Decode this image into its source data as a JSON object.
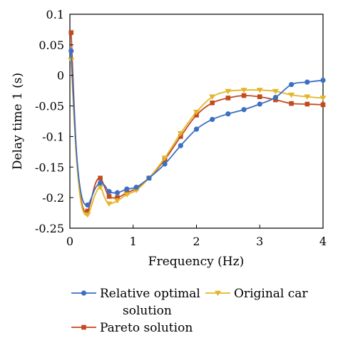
{
  "chart_data": {
    "type": "line",
    "title": "",
    "xlabel": "Frequency (Hz)",
    "ylabel": "Delay time 1 (s)",
    "xlim": [
      0,
      4
    ],
    "ylim": [
      -0.25,
      0.1
    ],
    "xticks": [
      0,
      1,
      2,
      3,
      4
    ],
    "xtick_labels": [
      "0",
      "1",
      "2",
      "3",
      "4"
    ],
    "yticks": [
      0.1,
      0.05,
      0,
      -0.05,
      -0.1,
      -0.15,
      -0.2,
      -0.25
    ],
    "ytick_labels": [
      "0.1",
      "0.05",
      "0",
      "-0.05",
      "-0.1",
      "-0.15",
      "-0.2",
      "-0.25"
    ],
    "grid": false,
    "legend_position": "bottom",
    "series": [
      {
        "name": "Relative optimal solution",
        "legend_lines": [
          "Relative optimal",
          "solution"
        ],
        "color": "#3b6fc4",
        "marker": "circle",
        "x": [
          0.02,
          0.1,
          0.18,
          0.28,
          0.4,
          0.48,
          0.55,
          0.62,
          0.75,
          0.9,
          1.05,
          1.25,
          1.5,
          1.75,
          2.0,
          2.25,
          2.5,
          2.75,
          3.0,
          3.25,
          3.5,
          3.75,
          4.0
        ],
        "y": [
          0.04,
          -0.12,
          -0.195,
          -0.212,
          -0.185,
          -0.176,
          -0.18,
          -0.19,
          -0.192,
          -0.186,
          -0.183,
          -0.168,
          -0.145,
          -0.115,
          -0.088,
          -0.072,
          -0.063,
          -0.056,
          -0.047,
          -0.036,
          -0.015,
          -0.011,
          -0.008
        ]
      },
      {
        "name": "Original car",
        "legend_lines": [
          "Original car"
        ],
        "color": "#e3b62a",
        "marker": "triangle-down",
        "x": [
          0.02,
          0.1,
          0.18,
          0.28,
          0.4,
          0.48,
          0.55,
          0.62,
          0.75,
          0.9,
          1.05,
          1.25,
          1.5,
          1.75,
          2.0,
          2.25,
          2.5,
          2.75,
          3.0,
          3.25,
          3.5,
          3.75,
          4.0
        ],
        "y": [
          0.025,
          -0.13,
          -0.21,
          -0.228,
          -0.195,
          -0.183,
          -0.2,
          -0.21,
          -0.205,
          -0.195,
          -0.188,
          -0.168,
          -0.135,
          -0.095,
          -0.06,
          -0.035,
          -0.026,
          -0.024,
          -0.024,
          -0.026,
          -0.032,
          -0.035,
          -0.037
        ]
      },
      {
        "name": "Pareto solution",
        "legend_lines": [
          "Pareto solution"
        ],
        "color": "#c24a1e",
        "marker": "square",
        "x": [
          0.02,
          0.1,
          0.18,
          0.28,
          0.4,
          0.48,
          0.55,
          0.62,
          0.75,
          0.9,
          1.05,
          1.25,
          1.5,
          1.75,
          2.0,
          2.25,
          2.5,
          2.75,
          3.0,
          3.25,
          3.5,
          3.75,
          4.0
        ],
        "y": [
          0.07,
          -0.12,
          -0.205,
          -0.222,
          -0.178,
          -0.168,
          -0.183,
          -0.198,
          -0.2,
          -0.192,
          -0.185,
          -0.168,
          -0.138,
          -0.1,
          -0.065,
          -0.045,
          -0.037,
          -0.033,
          -0.035,
          -0.04,
          -0.046,
          -0.047,
          -0.048
        ]
      }
    ],
    "marker_indices": [
      0,
      3,
      5,
      7,
      8,
      9,
      10,
      11,
      12,
      13,
      14,
      15,
      16,
      17,
      18,
      19,
      20,
      21,
      22
    ]
  }
}
